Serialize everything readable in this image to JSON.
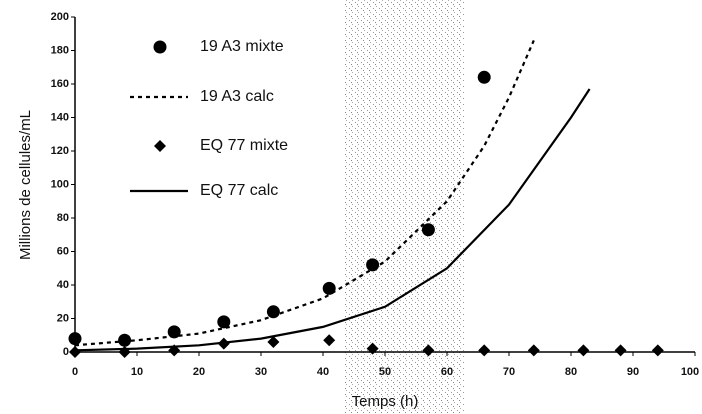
{
  "chart_data": {
    "type": "scatter",
    "xlabel": "Temps (h)",
    "ylabel": "Millions de cellules/mL",
    "xlim": [
      0,
      100
    ],
    "xticks": [
      0,
      10,
      20,
      30,
      40,
      50,
      60,
      70,
      80,
      90,
      100
    ],
    "ylim": [
      0,
      200
    ],
    "yticks": [
      0,
      20,
      40,
      60,
      80,
      100,
      120,
      140,
      160,
      180,
      200
    ],
    "series": [
      {
        "name": "19 A3 mixte",
        "style": "circle",
        "color": "#000000",
        "x": [
          0,
          8,
          16,
          24,
          32,
          41,
          48,
          57,
          66
        ],
        "values": [
          8,
          7,
          12,
          18,
          24,
          38,
          52,
          73,
          164
        ]
      },
      {
        "name": "19 A3 calc",
        "style": "dotted",
        "color": "#000000",
        "x": [
          0,
          10,
          20,
          30,
          40,
          50,
          60,
          66,
          70,
          74
        ],
        "values": [
          4,
          7,
          11,
          19,
          32,
          54,
          90,
          123,
          152,
          186
        ]
      },
      {
        "name": "EQ 77 mixte",
        "style": "diamond",
        "color": "#000000",
        "x": [
          0,
          8,
          16,
          24,
          32,
          41,
          48,
          57,
          66,
          74,
          82,
          88,
          94
        ],
        "values": [
          0,
          0,
          1,
          5,
          6,
          7,
          2,
          1,
          1,
          1,
          1,
          1,
          1
        ]
      },
      {
        "name": "EQ 77 calc",
        "style": "solid",
        "color": "#000000",
        "x": [
          0,
          10,
          20,
          30,
          40,
          50,
          60,
          70,
          80,
          83
        ],
        "values": [
          1,
          2,
          4,
          8,
          15,
          27,
          50,
          88,
          140,
          157
        ]
      }
    ]
  }
}
